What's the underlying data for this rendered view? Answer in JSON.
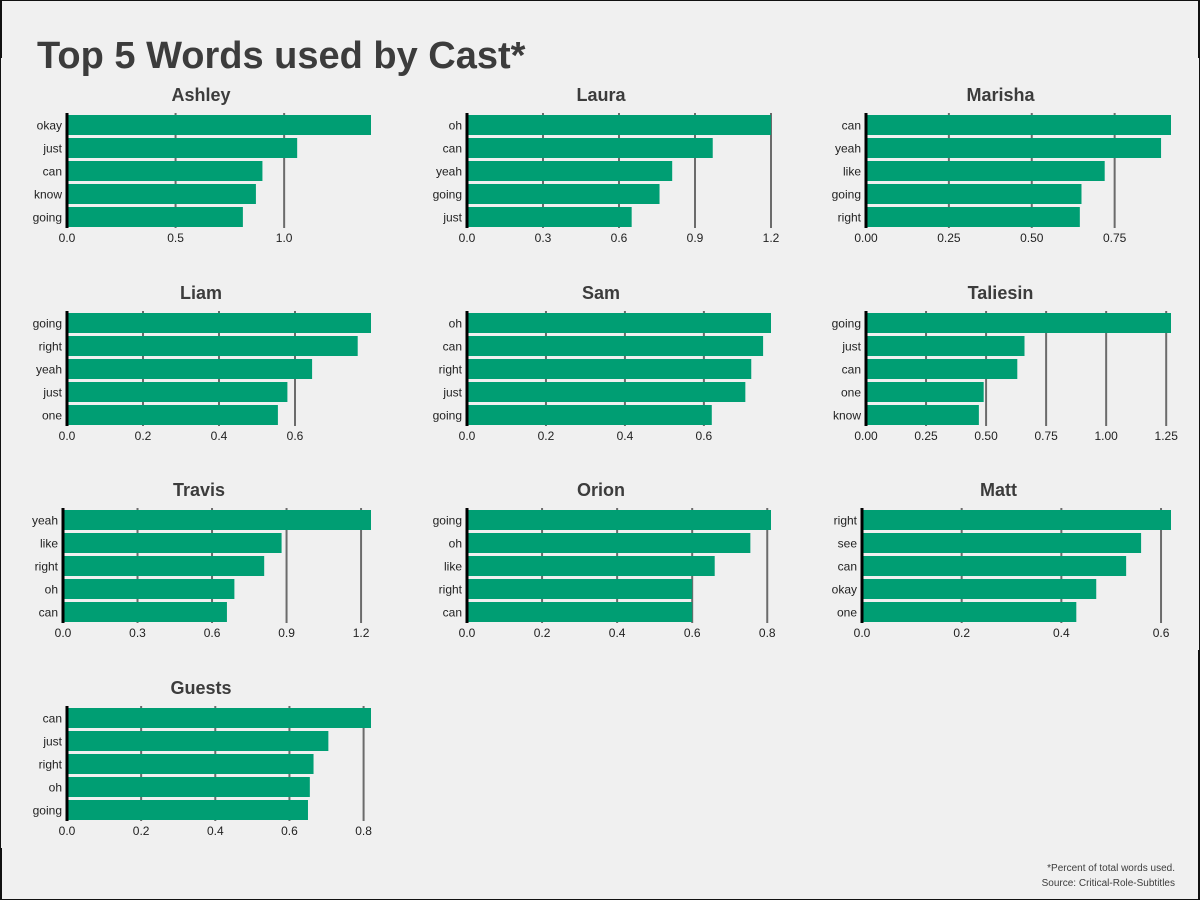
{
  "title": "Top 5 Words used by Cast*",
  "footnote": "*Percent of total words used.",
  "source": "Source: Critical-Role-Subtitles",
  "colors": {
    "bar": "#009e73",
    "background": "#f0f0f0",
    "grid": "#6b6b6b",
    "text": "#3c3c3c"
  },
  "chart_data": [
    {
      "type": "bar",
      "orientation": "horizontal",
      "title": "Ashley",
      "categories": [
        "okay",
        "just",
        "can",
        "know",
        "going"
      ],
      "values": [
        1.4,
        1.06,
        0.9,
        0.87,
        0.81
      ],
      "xticks": [
        "0.0",
        "0.5",
        "1.0"
      ],
      "xtick_values": [
        0,
        0.5,
        1.0
      ],
      "xlim": [
        0,
        1.4
      ]
    },
    {
      "type": "bar",
      "orientation": "horizontal",
      "title": "Laura",
      "categories": [
        "oh",
        "can",
        "yeah",
        "going",
        "just"
      ],
      "values": [
        1.2,
        0.97,
        0.81,
        0.76,
        0.65
      ],
      "xticks": [
        "0.0",
        "0.3",
        "0.6",
        "0.9",
        "1.2"
      ],
      "xtick_values": [
        0,
        0.3,
        0.6,
        0.9,
        1.2
      ],
      "xlim": [
        0,
        1.2
      ]
    },
    {
      "type": "bar",
      "orientation": "horizontal",
      "title": "Marisha",
      "categories": [
        "can",
        "yeah",
        "like",
        "going",
        "right"
      ],
      "values": [
        0.92,
        0.89,
        0.72,
        0.65,
        0.645
      ],
      "xticks": [
        "0.00",
        "0.25",
        "0.50",
        "0.75"
      ],
      "xtick_values": [
        0,
        0.25,
        0.5,
        0.75
      ],
      "xlim": [
        0,
        0.92
      ]
    },
    {
      "type": "bar",
      "orientation": "horizontal",
      "title": "Liam",
      "categories": [
        "going",
        "right",
        "yeah",
        "just",
        "one"
      ],
      "values": [
        0.8,
        0.765,
        0.645,
        0.58,
        0.555
      ],
      "xticks": [
        "0.0",
        "0.2",
        "0.4",
        "0.6"
      ],
      "xtick_values": [
        0,
        0.2,
        0.4,
        0.6
      ],
      "xlim": [
        0,
        0.8
      ]
    },
    {
      "type": "bar",
      "orientation": "horizontal",
      "title": "Sam",
      "categories": [
        "oh",
        "can",
        "right",
        "just",
        "going"
      ],
      "values": [
        0.77,
        0.75,
        0.72,
        0.705,
        0.62
      ],
      "xticks": [
        "0.0",
        "0.2",
        "0.4",
        "0.6"
      ],
      "xtick_values": [
        0,
        0.2,
        0.4,
        0.6
      ],
      "xlim": [
        0,
        0.77
      ]
    },
    {
      "type": "bar",
      "orientation": "horizontal",
      "title": "Taliesin",
      "categories": [
        "going",
        "just",
        "can",
        "one",
        "know"
      ],
      "values": [
        1.27,
        0.66,
        0.63,
        0.49,
        0.47
      ],
      "xticks": [
        "0.00",
        "0.25",
        "0.50",
        "0.75",
        "1.00",
        "1.25"
      ],
      "xtick_values": [
        0,
        0.25,
        0.5,
        0.75,
        1.0,
        1.25
      ],
      "xlim": [
        0,
        1.27
      ]
    },
    {
      "type": "bar",
      "orientation": "horizontal",
      "title": "Travis",
      "categories": [
        "yeah",
        "like",
        "right",
        "oh",
        "can"
      ],
      "values": [
        1.24,
        0.88,
        0.81,
        0.69,
        0.66
      ],
      "xticks": [
        "0.0",
        "0.3",
        "0.6",
        "0.9",
        "1.2"
      ],
      "xtick_values": [
        0,
        0.3,
        0.6,
        0.9,
        1.2
      ],
      "xlim": [
        0,
        1.24
      ]
    },
    {
      "type": "bar",
      "orientation": "horizontal",
      "title": "Orion",
      "categories": [
        "going",
        "oh",
        "like",
        "right",
        "can"
      ],
      "values": [
        0.81,
        0.755,
        0.66,
        0.6,
        0.6
      ],
      "xticks": [
        "0.0",
        "0.2",
        "0.4",
        "0.6",
        "0.8"
      ],
      "xtick_values": [
        0,
        0.2,
        0.4,
        0.6,
        0.8
      ],
      "xlim": [
        0,
        0.81
      ]
    },
    {
      "type": "bar",
      "orientation": "horizontal",
      "title": "Matt",
      "categories": [
        "right",
        "see",
        "can",
        "okay",
        "one"
      ],
      "values": [
        0.62,
        0.56,
        0.53,
        0.47,
        0.43
      ],
      "xticks": [
        "0.0",
        "0.2",
        "0.4",
        "0.6"
      ],
      "xtick_values": [
        0,
        0.2,
        0.4,
        0.6
      ],
      "xlim": [
        0,
        0.62
      ]
    },
    {
      "type": "bar",
      "orientation": "horizontal",
      "title": "Guests",
      "categories": [
        "can",
        "just",
        "right",
        "oh",
        "going"
      ],
      "values": [
        0.82,
        0.705,
        0.665,
        0.655,
        0.65
      ],
      "xticks": [
        "0.0",
        "0.2",
        "0.4",
        "0.6",
        "0.8"
      ],
      "xtick_values": [
        0,
        0.2,
        0.4,
        0.6,
        0.8
      ],
      "xlim": [
        0,
        0.82
      ]
    }
  ]
}
